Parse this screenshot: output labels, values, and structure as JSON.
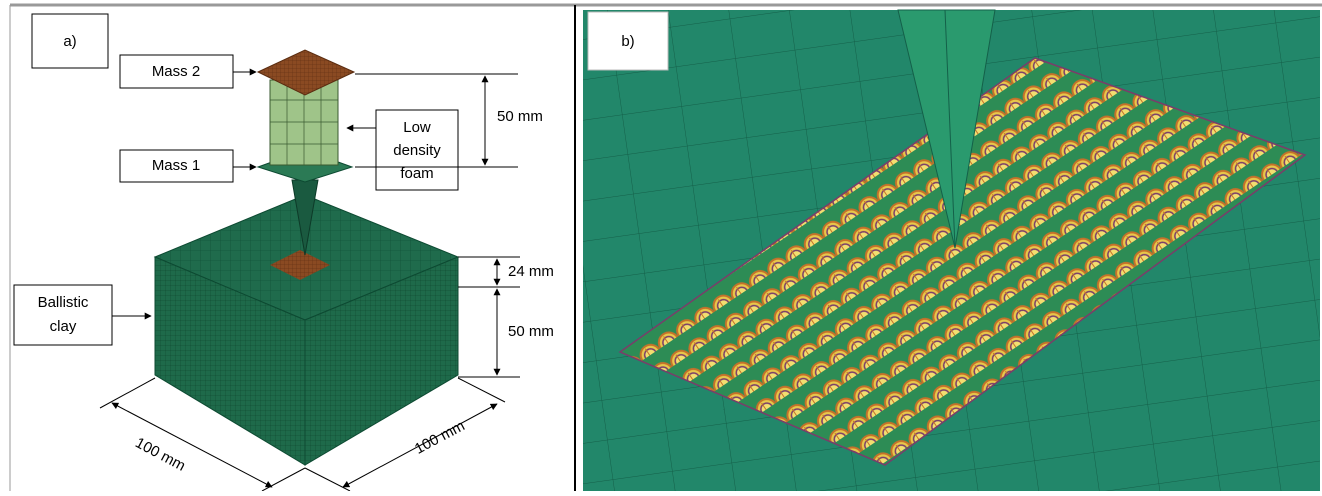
{
  "panel_a": {
    "label": "a)",
    "callouts": {
      "mass_2": "Mass 2",
      "mass_1": "Mass 1",
      "foam": [
        "Low",
        "density",
        "foam"
      ],
      "clay": [
        "Ballistic",
        "clay"
      ]
    },
    "dimensions": {
      "mass_gap": "50 mm",
      "top_layer": "24 mm",
      "bottom_layer": "50 mm",
      "width_left": "100 mm",
      "width_right": "100 mm"
    }
  },
  "panel_b": {
    "label": "b)"
  }
}
